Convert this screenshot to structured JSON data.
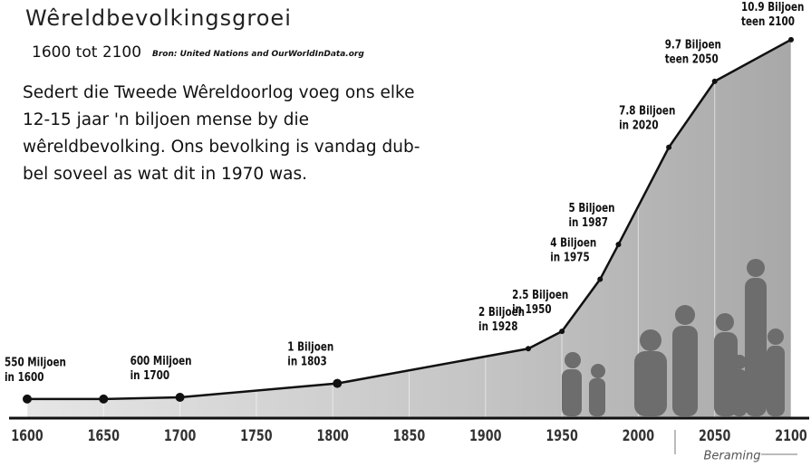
{
  "chart_data": {
    "type": "area",
    "title": "Wêreldbevolkingsgroei",
    "subtitle": "1600 tot 2100",
    "source": "Bron: United Nations and OurWorldInData.org",
    "description": "Sedert die Tweede Wêreldoorlog voeg ons elke 12-15 jaar 'n biljoen mense by die wêreldbevolking. Ons bevolking is vandag dub-bel soveel as wat dit in 1970 was.",
    "projection_label": "Beraming",
    "x": [
      1600,
      1650,
      1700,
      1803,
      1928,
      1950,
      1975,
      1987,
      2020,
      2050,
      2100
    ],
    "values": [
      0.55,
      0.55,
      0.6,
      1,
      2,
      2.5,
      4,
      5,
      7.8,
      9.7,
      10.9
    ],
    "point_labels": [
      [
        "550 Miljoen",
        "in 1600"
      ],
      null,
      [
        "600 Miljoen",
        "in 1700"
      ],
      [
        "1 Biljoen",
        "in 1803"
      ],
      [
        "2 Biljoen",
        "in 1928"
      ],
      [
        "2.5 Biljoen",
        "in 1950"
      ],
      [
        "4 Biljoen",
        "in 1975"
      ],
      [
        "5 Biljoen",
        "in 1987"
      ],
      [
        "7.8 Biljoen",
        "in 2020"
      ],
      [
        "9.7 Biljoen",
        "teen 2050"
      ],
      [
        "10.9 Biljoen",
        "teen 2100"
      ]
    ],
    "xlim": [
      1600,
      2100
    ],
    "xticks": [
      1600,
      1650,
      1700,
      1750,
      1800,
      1850,
      1900,
      1950,
      2000,
      2050,
      2100
    ],
    "ylim": [
      0,
      11
    ],
    "color": "#111111",
    "fill": "#c9c9c9"
  }
}
